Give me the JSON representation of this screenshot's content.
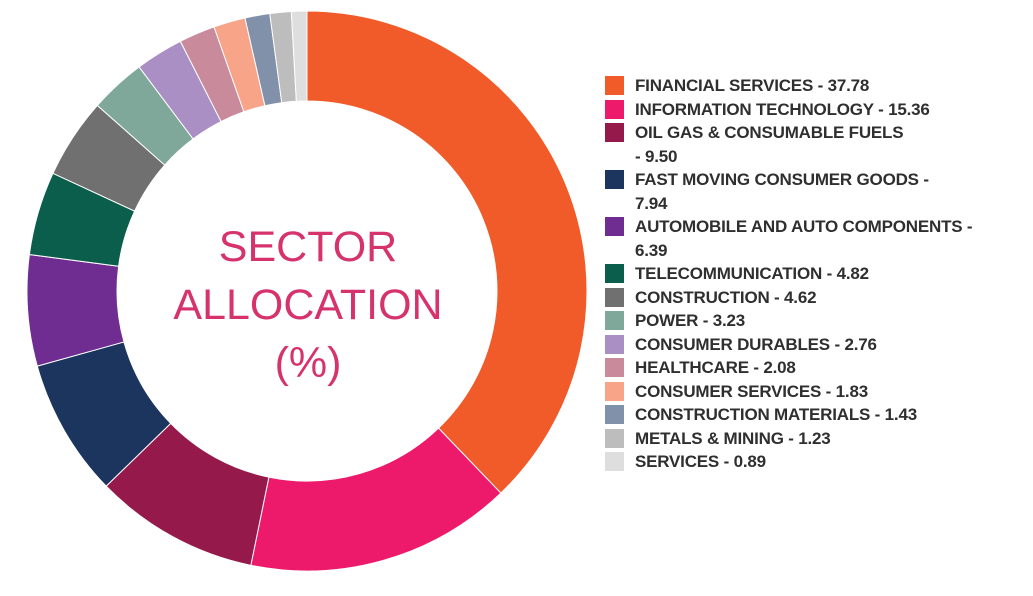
{
  "center_title": {
    "line1": "SECTOR",
    "line2": "ALLOCATION",
    "line3": "(%)"
  },
  "chart_data": {
    "type": "pie",
    "donut": true,
    "title": "SECTOR ALLOCATION (%)",
    "legend_position": "right",
    "categories": [
      "FINANCIAL SERVICES",
      "INFORMATION TECHNOLOGY",
      "OIL GAS & CONSUMABLE FUELS",
      "FAST MOVING CONSUMER GOODS",
      "AUTOMOBILE AND AUTO COMPONENTS",
      "TELECOMMUNICATION",
      "CONSTRUCTION",
      "POWER",
      "CONSUMER DURABLES",
      "HEALTHCARE",
      "CONSUMER SERVICES",
      "CONSTRUCTION MATERIALS",
      "METALS & MINING",
      "SERVICES"
    ],
    "values": [
      37.78,
      15.36,
      9.5,
      7.94,
      6.39,
      4.82,
      4.62,
      3.23,
      2.76,
      2.08,
      1.83,
      1.43,
      1.23,
      0.89
    ],
    "value_labels": [
      "37.78",
      "15.36",
      "9.50",
      "7.94",
      "6.39",
      "4.82",
      "4.62",
      "3.23",
      "2.76",
      "2.08",
      "1.83",
      "1.43",
      "1.23",
      "0.89"
    ],
    "colors": [
      "#f15a29",
      "#ed1a6b",
      "#96194b",
      "#1c355e",
      "#6f2c91",
      "#0b5e4b",
      "#707070",
      "#7fa89a",
      "#a98fc4",
      "#c98a9c",
      "#f7a489",
      "#8291aa",
      "#bdbdbd",
      "#dedede"
    ]
  }
}
